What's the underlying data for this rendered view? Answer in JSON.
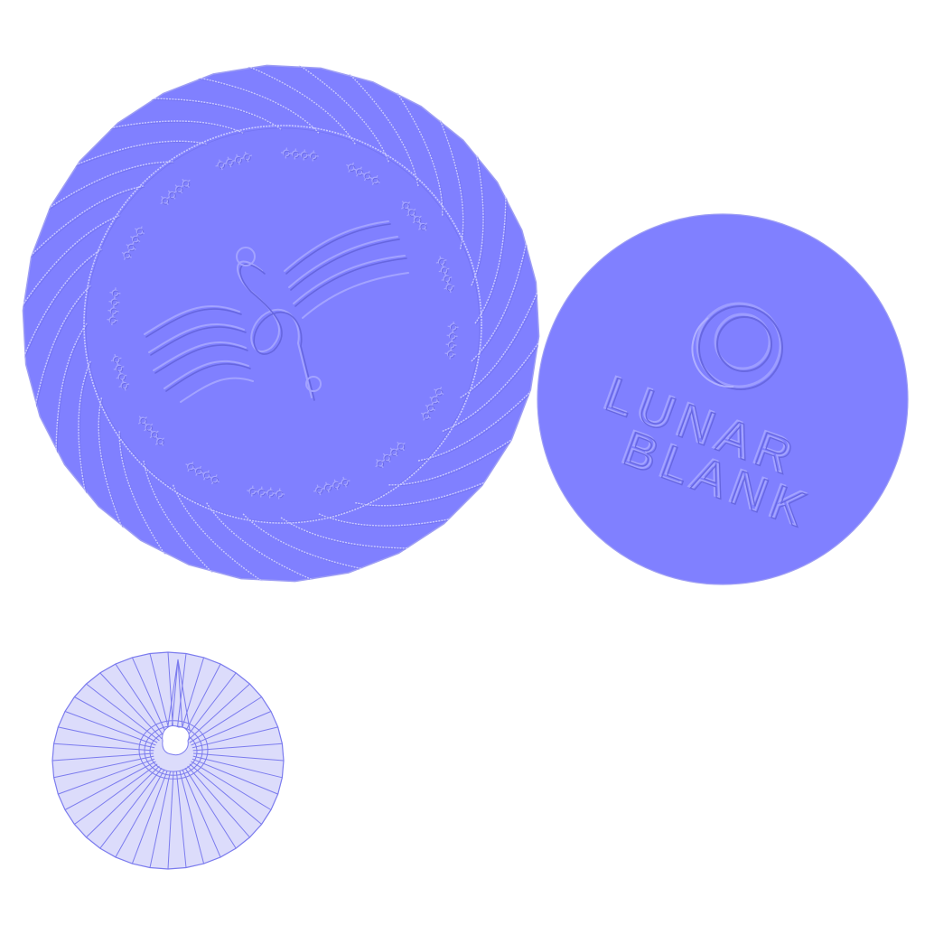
{
  "colors": {
    "background": "#ffffff",
    "normal_map_base": "#8080ff",
    "normal_map_edge": "#9e9ef4",
    "ridge_highlight": "#c9c9ff",
    "ridge_shadow": "#6a6ae6",
    "wireframe_fill": "#dcdcfb",
    "wireframe_stroke": "#7b7bee"
  },
  "items": {
    "plate": {
      "description": "normal-map UV island of a decorative plate: swirled rim, floral ring, clef-and-waves emboss",
      "rim_ridge_count": 32,
      "floral_cluster_count": 16
    },
    "lid": {
      "description": "normal-map UV island of a round lid with a crescent logo and embossed lettering",
      "logo_text_line1": "LUNAR",
      "logo_text_line2": "BLANK"
    },
    "mesh": {
      "description": "UV wireframe island: radial fan triangulation around an off-center hole",
      "spoke_count": 40
    }
  }
}
